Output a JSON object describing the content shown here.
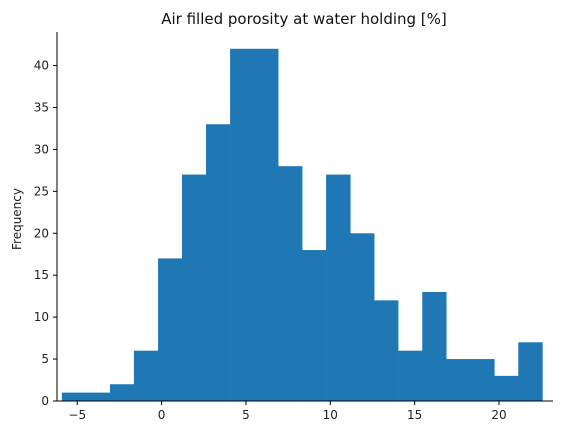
{
  "chart_data": {
    "type": "bar",
    "title": "Air filled porosity at water holding [%]",
    "xlabel": "",
    "ylabel": "Frequency",
    "xlim": [
      -6.2,
      23.2
    ],
    "ylim": [
      0,
      44
    ],
    "xticks": [
      -5,
      0,
      5,
      10,
      15,
      20
    ],
    "yticks": [
      0,
      5,
      10,
      15,
      20,
      25,
      30,
      35,
      40
    ],
    "grid": false,
    "bar_color": "#1f77b4",
    "bin_edges": [
      -5.91,
      -4.48,
      -3.06,
      -1.64,
      -0.21,
      1.21,
      2.63,
      4.06,
      5.48,
      6.91,
      8.33,
      9.75,
      11.18,
      12.6,
      14.02,
      15.45,
      16.87,
      18.29,
      19.72,
      21.14,
      22.57
    ],
    "values": [
      1,
      1,
      2,
      6,
      17,
      27,
      33,
      42,
      42,
      28,
      18,
      27,
      20,
      12,
      6,
      13,
      5,
      5,
      3,
      7
    ]
  }
}
